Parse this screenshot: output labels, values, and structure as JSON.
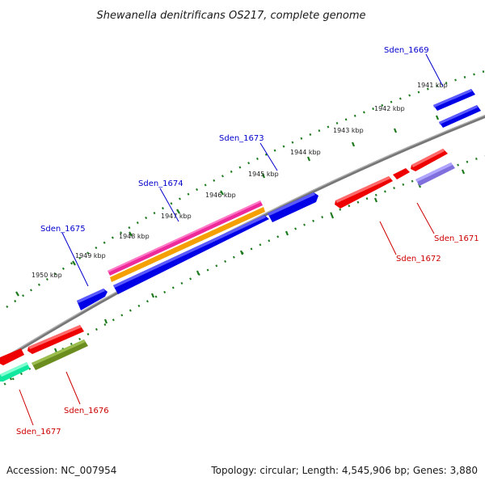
{
  "title": "Shewanella denitrificans OS217, complete genome",
  "footer": {
    "accession": "Accession: NC_007954",
    "summary": "Topology: circular; Length: 4,545,906 bp; Genes: 3,880"
  },
  "colors": {
    "backbone": "#8a8a8a",
    "tick": "#1e7a1e",
    "forward_label": "#0000cc",
    "reverse_label": "#cc0000",
    "blue": "#0000e6",
    "red": "#ee0000",
    "magenta": "#ee2a9a",
    "orange": "#f5a000",
    "lavender": "#8070dd",
    "olive": "#6b8c1e",
    "teal": "#10e8a0"
  },
  "kbp_labels": [
    "1941 kbp",
    "1942 kbp",
    "1943 kbp",
    "1944 kbp",
    "1945 kbp",
    "1946 kbp",
    "1947 kbp",
    "1948 kbp",
    "1949 kbp",
    "1950 kbp"
  ],
  "genes": [
    {
      "label": "Sden_1669",
      "strand": "forward"
    },
    {
      "label": "Sden_1673",
      "strand": "forward"
    },
    {
      "label": "Sden_1674",
      "strand": "forward"
    },
    {
      "label": "Sden_1675",
      "strand": "forward"
    },
    {
      "label": "Sden_1671",
      "strand": "reverse"
    },
    {
      "label": "Sden_1672",
      "strand": "reverse"
    },
    {
      "label": "Sden_1676",
      "strand": "reverse"
    },
    {
      "label": "Sden_1677",
      "strand": "reverse"
    }
  ]
}
